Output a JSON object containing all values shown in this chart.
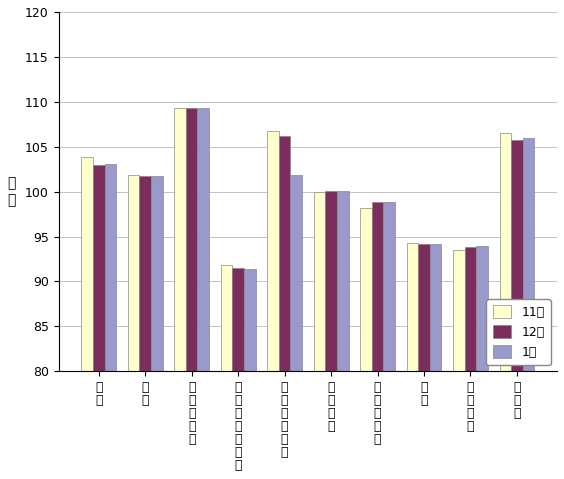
{
  "categories": [
    "食料",
    "住居",
    "光熱・\n水道",
    "家具・家事用品",
    "被服及び\n履物",
    "保健医療",
    "交通・\n通信",
    "教育",
    "教養娯楽",
    "諸雑費"
  ],
  "categories_xlabels": [
    "食\n料",
    "住\n居",
    "光\n熱\n・\n水\n道",
    "家\n具\n・\n家\n事\n用\n品",
    "被\n服\n及\nび\n履\n物",
    "保\n健\n医\n療",
    "交\n通\n・\n通\n信",
    "教\n育",
    "教\n養\n娯\n楽",
    "諸\n雑\n費"
  ],
  "series": {
    "11月": [
      103.8,
      101.8,
      109.3,
      91.8,
      106.7,
      100.0,
      98.2,
      94.3,
      93.5,
      106.5
    ],
    "12月": [
      103.0,
      101.7,
      109.3,
      91.5,
      106.2,
      100.1,
      98.8,
      94.2,
      93.8,
      105.8
    ],
    "1月": [
      103.1,
      101.7,
      109.3,
      91.4,
      101.9,
      100.1,
      98.9,
      94.2,
      93.9,
      106.0
    ]
  },
  "series_order": [
    "11月",
    "12月",
    "1月"
  ],
  "colors": {
    "11月": "#FFFFCC",
    "12月": "#7B2D5E",
    "1月": "#9999CC"
  },
  "ylabel": "指\n数",
  "ylim": [
    80.0,
    120.0
  ],
  "yticks": [
    80.0,
    85.0,
    90.0,
    95.0,
    100.0,
    105.0,
    110.0,
    115.0,
    120.0
  ],
  "title": "",
  "legend_loc": "lower right",
  "bar_width": 0.25,
  "edgecolor": "#888888",
  "grid_color": "#aaaaaa",
  "bg_color": "#ffffff",
  "plot_bg_color": "#ffffff"
}
